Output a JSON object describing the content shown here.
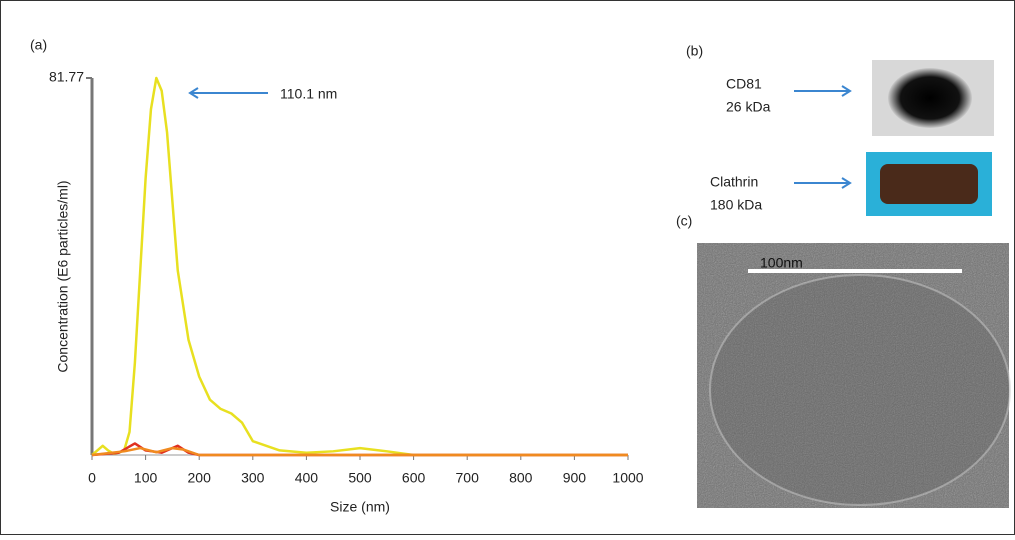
{
  "chart_data": {
    "type": "line",
    "x_label": "Size (nm)",
    "y_label": "Concentration (E6 particles/ml)",
    "annotation": "110.1 nm",
    "xlim": [
      0,
      1000
    ],
    "xticks": [
      0,
      100,
      200,
      300,
      400,
      500,
      600,
      700,
      800,
      900,
      1000
    ],
    "ylim": [
      0,
      81.77
    ],
    "yticks": [
      81.77
    ],
    "series": [
      {
        "color": "#e8e020",
        "x": [
          0,
          10,
          20,
          30,
          40,
          50,
          60,
          70,
          80,
          90,
          100,
          110,
          120,
          130,
          140,
          150,
          160,
          180,
          200,
          220,
          240,
          260,
          280,
          300,
          350,
          400,
          450,
          500,
          550,
          600,
          1000
        ],
        "values": [
          0,
          1,
          2,
          1,
          0.3,
          0.5,
          1,
          5,
          20,
          40,
          60,
          75,
          81.77,
          79,
          70,
          55,
          40,
          25,
          17,
          12,
          10,
          9,
          7,
          3,
          1,
          0.5,
          0.8,
          1.5,
          0.8,
          0,
          0
        ]
      },
      {
        "color": "#e03020",
        "x": [
          0,
          50,
          80,
          100,
          130,
          160,
          180,
          200,
          1000
        ],
        "values": [
          0,
          0.5,
          2.5,
          1,
          0.5,
          2,
          0.5,
          0,
          0
        ]
      },
      {
        "color": "#f08a20",
        "x": [
          0,
          60,
          90,
          120,
          150,
          170,
          200,
          1000
        ],
        "values": [
          0,
          0.8,
          1.5,
          0.6,
          1.5,
          1.2,
          0,
          0
        ]
      }
    ]
  },
  "figure": {
    "panel_a": "(a)",
    "panel_b": "(b)",
    "panel_c": "(c)",
    "cd81": "CD81",
    "cd81_kda": "26 kDa",
    "clathrin": "Clathrin",
    "clathrin_kda": "180 kDa",
    "scale_bar": "100nm"
  }
}
